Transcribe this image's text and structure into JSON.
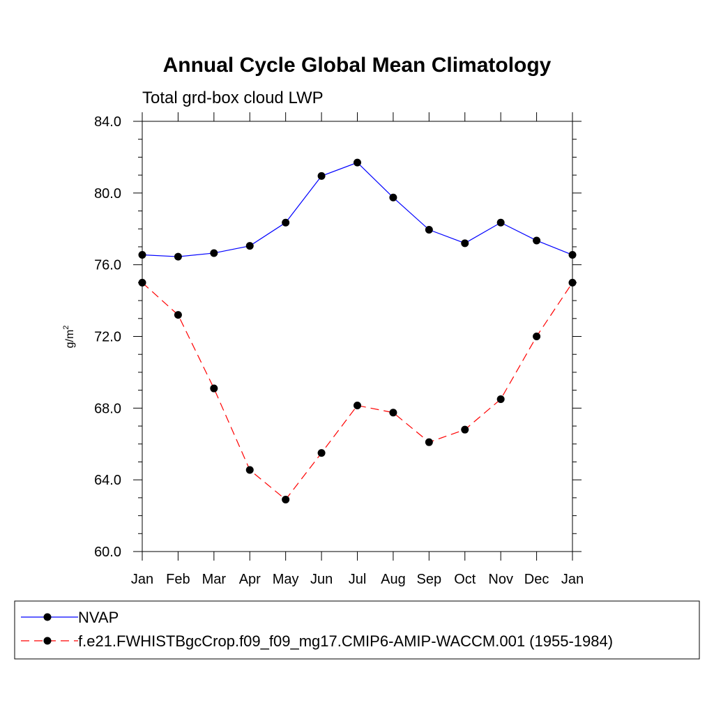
{
  "chart_data": {
    "type": "line",
    "title": "Annual Cycle Global Mean Climatology",
    "subtitle": "Total grd-box cloud LWP",
    "xlabel": "",
    "ylabel": "g/m",
    "ylabel_superscript": "2",
    "categories": [
      "Jan",
      "Feb",
      "Mar",
      "Apr",
      "May",
      "Jun",
      "Jul",
      "Aug",
      "Sep",
      "Oct",
      "Nov",
      "Dec",
      "Jan"
    ],
    "ylim": [
      60.0,
      84.0
    ],
    "yticks": [
      "60.0",
      "64.0",
      "68.0",
      "72.0",
      "76.0",
      "80.0",
      "84.0"
    ],
    "ytick_values": [
      60,
      64,
      68,
      72,
      76,
      80,
      84
    ],
    "y_minor_step": 1,
    "grid": false,
    "legend_position": "bottom",
    "series": [
      {
        "name": "NVAP",
        "color": "#0000ff",
        "dash": "solid",
        "values": [
          76.55,
          76.45,
          76.65,
          77.05,
          78.35,
          80.95,
          81.7,
          79.75,
          77.95,
          77.2,
          78.35,
          77.35,
          76.55
        ]
      },
      {
        "name": "f.e21.FWHISTBgcCrop.f09_f09_mg17.CMIP6-AMIP-WACCM.001 (1955-1984)",
        "color": "#ff0000",
        "dash": "dashed",
        "values": [
          75.0,
          73.2,
          69.1,
          64.55,
          62.9,
          65.5,
          68.15,
          67.75,
          66.1,
          66.8,
          68.5,
          72.0,
          75.0
        ]
      }
    ]
  }
}
